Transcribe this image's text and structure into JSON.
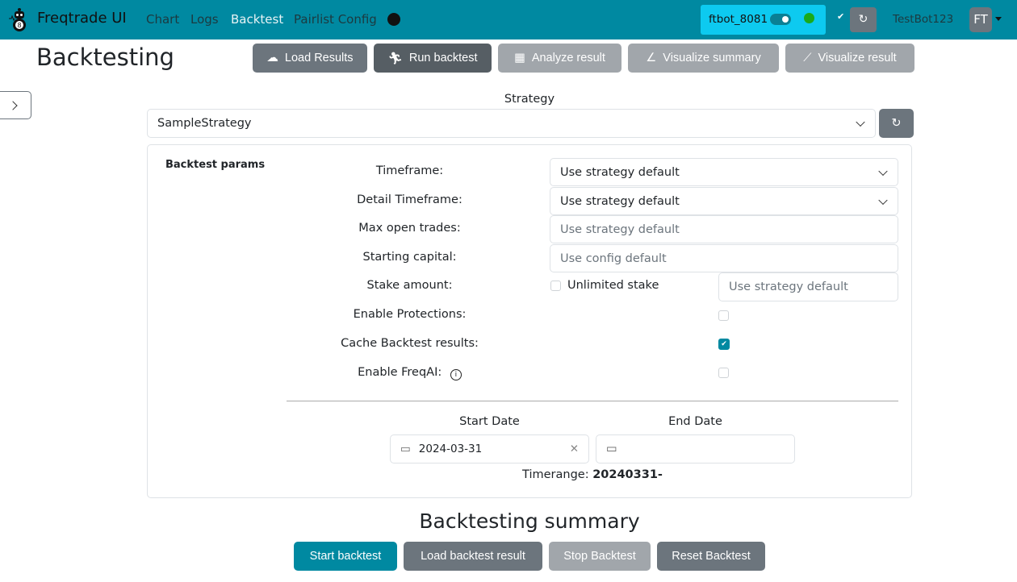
{
  "nav": {
    "brand": "Freqtrade UI",
    "links": [
      "Chart",
      "Logs",
      "Backtest",
      "Pairlist Config"
    ],
    "active": "Backtest",
    "bot_name": "ftbot_8081",
    "bot_status_color": "#1aaa1a",
    "user": "TestBot123",
    "avatar": "FT",
    "accent": "#0089a1"
  },
  "page": {
    "title": "Backtesting"
  },
  "toolbar": [
    "Load Results",
    "Run backtest",
    "Analyze result",
    "Visualize summary",
    "Visualize result"
  ],
  "strategy": {
    "label": "Strategy",
    "value": "SampleStrategy"
  },
  "params": {
    "heading": "Backtest params",
    "timeframe": {
      "label": "Timeframe:",
      "value": "Use strategy default"
    },
    "detail_timeframe": {
      "label": "Detail Timeframe:",
      "value": "Use strategy default"
    },
    "max_open_trades": {
      "label": "Max open trades:",
      "placeholder": "Use strategy default"
    },
    "starting_capital": {
      "label": "Starting capital:",
      "placeholder": "Use config default"
    },
    "stake_amount": {
      "label": "Stake amount:",
      "unlimited_label": "Unlimited stake",
      "unlimited": false,
      "placeholder": "Use strategy default"
    },
    "protections": {
      "label": "Enable Protections:",
      "checked": false
    },
    "cache": {
      "label": "Cache Backtest results:",
      "checked": true
    },
    "freqai": {
      "label": "Enable FreqAI:",
      "checked": false
    }
  },
  "dates": {
    "start_label": "Start Date",
    "end_label": "End Date",
    "start": "2024-03-31",
    "end": "",
    "timerange_label": "Timerange:",
    "timerange": "20240331-"
  },
  "summary": {
    "title": "Backtesting summary",
    "buttons": [
      "Start backtest",
      "Load backtest result",
      "Stop Backtest",
      "Reset Backtest"
    ]
  }
}
